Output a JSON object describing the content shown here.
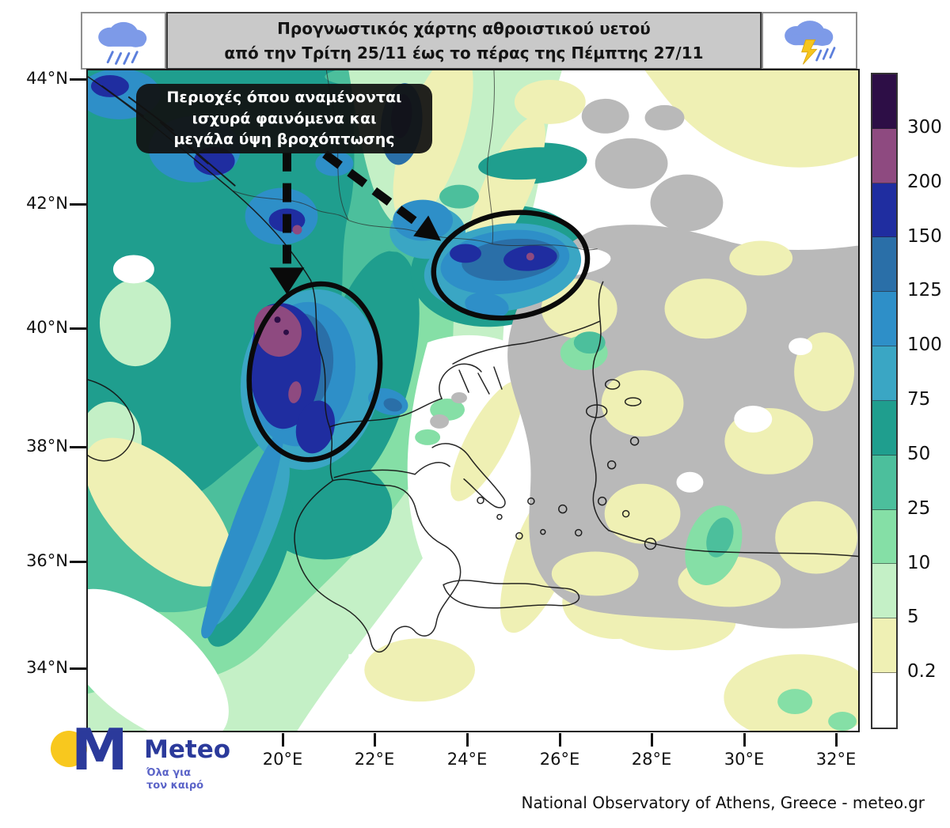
{
  "header": {
    "title_line1": "Προγνωστικός χάρτης αθροιστικού υετού",
    "title_line2": "από την Τρίτη 25/11 έως το πέρας της Πέμπτης 27/11",
    "left_icon": "rain-cloud-icon",
    "right_icon": "storm-cloud-icon"
  },
  "annotation": {
    "line1": "Περιοχές όπου αναμένονται",
    "line2": "ισχυρά φαινόμενα και",
    "line3": "μεγάλα ύψη βροχόπτωσης"
  },
  "axes": {
    "lat_labels": [
      "44°N",
      "42°N",
      "40°N",
      "38°N",
      "36°N",
      "34°N"
    ],
    "lon_labels": [
      "20°E",
      "22°E",
      "24°E",
      "26°E",
      "28°E",
      "30°E",
      "32°E"
    ]
  },
  "legend": {
    "ticks": [
      "300",
      "200",
      "150",
      "125",
      "100",
      "75",
      "50",
      "25",
      "10",
      "5",
      "0.2"
    ],
    "colors_top_to_bottom": [
      "#2d0e46",
      "#8e4a80",
      "#1f2da0",
      "#2a6fa8",
      "#2e8fc8",
      "#3aa6c4",
      "#1f9e8e",
      "#4cbf9c",
      "#85dfa6",
      "#c4f0c6",
      "#eff0b4",
      "#ffffff"
    ]
  },
  "map_colors": {
    "land_no_data": "#b9b9b9",
    "sea_no_data": "#ffffff",
    "coastline": "#141414"
  },
  "logo": {
    "brand": "Meteo",
    "m_mark": "M",
    "tagline_line1": "Όλα για",
    "tagline_line2": "τον καιρό",
    "brand_color": "#2b3a9b",
    "sun_color": "#f8c81e"
  },
  "credit": "National Observatory of Athens, Greece - meteo.gr"
}
